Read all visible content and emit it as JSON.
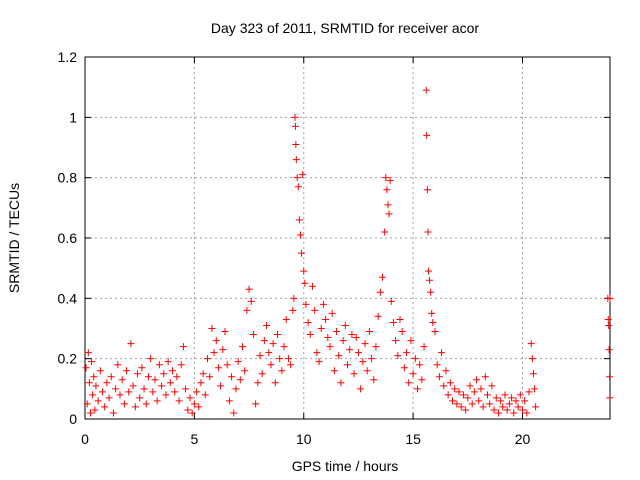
{
  "chart_data": {
    "type": "scatter",
    "title": "Day 323 of 2011, SRMTID for receiver acor",
    "xlabel": "GPS time / hours",
    "ylabel": "SRMTID / TECUs",
    "xlim": [
      0,
      24
    ],
    "ylim": [
      0,
      1.2
    ],
    "xticks": [
      "0",
      "5",
      "10",
      "15",
      "20"
    ],
    "yticks": [
      "0",
      "0.2",
      "0.4",
      "0.6",
      "0.8",
      "1",
      "1.2"
    ],
    "grid": true,
    "marker": "+",
    "color": "#ff0000",
    "series": [
      {
        "points": [
          [
            0.05,
            0.17
          ],
          [
            0.1,
            0.05
          ],
          [
            0.15,
            0.22
          ],
          [
            0.2,
            0.12
          ],
          [
            0.25,
            0.02
          ],
          [
            0.3,
            0.19
          ],
          [
            0.35,
            0.08
          ],
          [
            0.4,
            0.14
          ],
          [
            0.45,
            0.03
          ],
          [
            0.5,
            0.11
          ],
          [
            0.6,
            0.06
          ],
          [
            0.7,
            0.16
          ],
          [
            0.8,
            0.09
          ],
          [
            0.9,
            0.04
          ],
          [
            1.0,
            0.12
          ],
          [
            1.1,
            0.07
          ],
          [
            1.2,
            0.14
          ],
          [
            1.3,
            0.02
          ],
          [
            1.4,
            0.1
          ],
          [
            1.5,
            0.18
          ],
          [
            1.6,
            0.08
          ],
          [
            1.7,
            0.13
          ],
          [
            1.8,
            0.05
          ],
          [
            1.9,
            0.16
          ],
          [
            2.0,
            0.09
          ],
          [
            2.1,
            0.25
          ],
          [
            2.2,
            0.11
          ],
          [
            2.3,
            0.04
          ],
          [
            2.4,
            0.15
          ],
          [
            2.5,
            0.07
          ],
          [
            2.6,
            0.17
          ],
          [
            2.7,
            0.1
          ],
          [
            2.8,
            0.05
          ],
          [
            2.9,
            0.14
          ],
          [
            3.0,
            0.2
          ],
          [
            3.1,
            0.09
          ],
          [
            3.2,
            0.13
          ],
          [
            3.3,
            0.06
          ],
          [
            3.4,
            0.18
          ],
          [
            3.5,
            0.11
          ],
          [
            3.6,
            0.15
          ],
          [
            3.7,
            0.08
          ],
          [
            3.8,
            0.19
          ],
          [
            3.9,
            0.12
          ],
          [
            4.0,
            0.16
          ],
          [
            4.1,
            0.09
          ],
          [
            4.2,
            0.14
          ],
          [
            4.3,
            0.06
          ],
          [
            4.4,
            0.18
          ],
          [
            4.5,
            0.24
          ],
          [
            4.6,
            0.1
          ],
          [
            4.7,
            0.03
          ],
          [
            4.8,
            0.07
          ],
          [
            4.9,
            0.02
          ],
          [
            5.0,
            0.05
          ],
          [
            5.1,
            0.09
          ],
          [
            5.2,
            0.04
          ],
          [
            5.3,
            0.12
          ],
          [
            5.4,
            0.15
          ],
          [
            5.5,
            0.08
          ],
          [
            5.6,
            0.2
          ],
          [
            5.7,
            0.14
          ],
          [
            5.8,
            0.3
          ],
          [
            5.9,
            0.22
          ],
          [
            6.0,
            0.26
          ],
          [
            6.1,
            0.17
          ],
          [
            6.2,
            0.11
          ],
          [
            6.3,
            0.23
          ],
          [
            6.4,
            0.29
          ],
          [
            6.5,
            0.18
          ],
          [
            6.6,
            0.06
          ],
          [
            6.7,
            0.14
          ],
          [
            6.8,
            0.02
          ],
          [
            6.9,
            0.1
          ],
          [
            7.0,
            0.19
          ],
          [
            7.1,
            0.13
          ],
          [
            7.2,
            0.24
          ],
          [
            7.3,
            0.16
          ],
          [
            7.4,
            0.36
          ],
          [
            7.5,
            0.43
          ],
          [
            7.6,
            0.39
          ],
          [
            7.7,
            0.28
          ],
          [
            7.8,
            0.05
          ],
          [
            7.9,
            0.12
          ],
          [
            8.0,
            0.21
          ],
          [
            8.1,
            0.15
          ],
          [
            8.2,
            0.26
          ],
          [
            8.3,
            0.31
          ],
          [
            8.4,
            0.22
          ],
          [
            8.5,
            0.18
          ],
          [
            8.6,
            0.25
          ],
          [
            8.7,
            0.12
          ],
          [
            8.8,
            0.28
          ],
          [
            8.9,
            0.2
          ],
          [
            9.0,
            0.16
          ],
          [
            9.1,
            0.24
          ],
          [
            9.2,
            0.33
          ],
          [
            9.3,
            0.2
          ],
          [
            9.4,
            0.18
          ],
          [
            9.5,
            0.36
          ],
          [
            9.55,
            0.4
          ],
          [
            9.6,
            1.0
          ],
          [
            9.62,
            0.97
          ],
          [
            9.64,
            0.91
          ],
          [
            9.66,
            0.86
          ],
          [
            9.7,
            0.8
          ],
          [
            9.75,
            0.77
          ],
          [
            9.8,
            0.66
          ],
          [
            9.85,
            0.61
          ],
          [
            9.9,
            0.55
          ],
          [
            9.95,
            0.81
          ],
          [
            10.0,
            0.49
          ],
          [
            10.05,
            0.45
          ],
          [
            10.1,
            0.38
          ],
          [
            10.2,
            0.32
          ],
          [
            10.3,
            0.28
          ],
          [
            10.4,
            0.44
          ],
          [
            10.5,
            0.36
          ],
          [
            10.6,
            0.22
          ],
          [
            10.7,
            0.19
          ],
          [
            10.8,
            0.3
          ],
          [
            10.9,
            0.38
          ],
          [
            11.0,
            0.33
          ],
          [
            11.1,
            0.27
          ],
          [
            11.2,
            0.24
          ],
          [
            11.3,
            0.35
          ],
          [
            11.4,
            0.16
          ],
          [
            11.5,
            0.29
          ],
          [
            11.6,
            0.21
          ],
          [
            11.7,
            0.12
          ],
          [
            11.8,
            0.26
          ],
          [
            11.9,
            0.31
          ],
          [
            12.0,
            0.18
          ],
          [
            12.1,
            0.23
          ],
          [
            12.2,
            0.28
          ],
          [
            12.3,
            0.15
          ],
          [
            12.4,
            0.27
          ],
          [
            12.5,
            0.22
          ],
          [
            12.6,
            0.1
          ],
          [
            12.7,
            0.19
          ],
          [
            12.8,
            0.25
          ],
          [
            12.9,
            0.16
          ],
          [
            13.0,
            0.29
          ],
          [
            13.1,
            0.2
          ],
          [
            13.2,
            0.13
          ],
          [
            13.3,
            0.24
          ],
          [
            13.4,
            0.34
          ],
          [
            13.5,
            0.42
          ],
          [
            13.6,
            0.47
          ],
          [
            13.7,
            0.62
          ],
          [
            13.75,
            0.8
          ],
          [
            13.8,
            0.76
          ],
          [
            13.85,
            0.71
          ],
          [
            13.9,
            0.68
          ],
          [
            13.95,
            0.79
          ],
          [
            14.0,
            0.39
          ],
          [
            14.1,
            0.32
          ],
          [
            14.2,
            0.26
          ],
          [
            14.3,
            0.21
          ],
          [
            14.4,
            0.33
          ],
          [
            14.5,
            0.29
          ],
          [
            14.6,
            0.17
          ],
          [
            14.7,
            0.22
          ],
          [
            14.8,
            0.12
          ],
          [
            14.9,
            0.26
          ],
          [
            15.0,
            0.15
          ],
          [
            15.1,
            0.2
          ],
          [
            15.2,
            0.1
          ],
          [
            15.3,
            0.18
          ],
          [
            15.4,
            0.13
          ],
          [
            15.5,
            0.24
          ],
          [
            15.6,
            1.09
          ],
          [
            15.62,
            0.94
          ],
          [
            15.65,
            0.76
          ],
          [
            15.68,
            0.62
          ],
          [
            15.7,
            0.49
          ],
          [
            15.75,
            0.46
          ],
          [
            15.8,
            0.42
          ],
          [
            15.85,
            0.35
          ],
          [
            15.9,
            0.32
          ],
          [
            16.0,
            0.29
          ],
          [
            16.1,
            0.18
          ],
          [
            16.2,
            0.14
          ],
          [
            16.3,
            0.22
          ],
          [
            16.4,
            0.11
          ],
          [
            16.5,
            0.16
          ],
          [
            16.6,
            0.08
          ],
          [
            16.7,
            0.12
          ],
          [
            16.8,
            0.06
          ],
          [
            16.9,
            0.1
          ],
          [
            17.0,
            0.05
          ],
          [
            17.1,
            0.09
          ],
          [
            17.2,
            0.04
          ],
          [
            17.3,
            0.08
          ],
          [
            17.4,
            0.03
          ],
          [
            17.5,
            0.07
          ],
          [
            17.6,
            0.11
          ],
          [
            17.7,
            0.05
          ],
          [
            17.8,
            0.09
          ],
          [
            17.9,
            0.13
          ],
          [
            18.0,
            0.06
          ],
          [
            18.1,
            0.1
          ],
          [
            18.2,
            0.04
          ],
          [
            18.3,
            0.14
          ],
          [
            18.4,
            0.08
          ],
          [
            18.5,
            0.05
          ],
          [
            18.6,
            0.11
          ],
          [
            18.7,
            0.03
          ],
          [
            18.8,
            0.07
          ],
          [
            18.9,
            0.02
          ],
          [
            19.0,
            0.06
          ],
          [
            19.1,
            0.04
          ],
          [
            19.2,
            0.08
          ],
          [
            19.3,
            0.03
          ],
          [
            19.4,
            0.05
          ],
          [
            19.5,
            0.07
          ],
          [
            19.6,
            0.02
          ],
          [
            19.7,
            0.06
          ],
          [
            19.8,
            0.04
          ],
          [
            19.9,
            0.08
          ],
          [
            20.0,
            0.03
          ],
          [
            20.1,
            0.06
          ],
          [
            20.2,
            0.02
          ],
          [
            20.3,
            0.09
          ],
          [
            20.4,
            0.25
          ],
          [
            20.45,
            0.2
          ],
          [
            20.5,
            0.15
          ],
          [
            20.55,
            0.1
          ],
          [
            20.6,
            0.04
          ],
          [
            23.9,
            0.4
          ],
          [
            23.92,
            0.33
          ],
          [
            23.94,
            0.31
          ],
          [
            23.96,
            0.23
          ],
          [
            23.98,
            0.14
          ],
          [
            23.99,
            0.07
          ],
          [
            24.0,
            0.4
          ]
        ]
      }
    ]
  }
}
